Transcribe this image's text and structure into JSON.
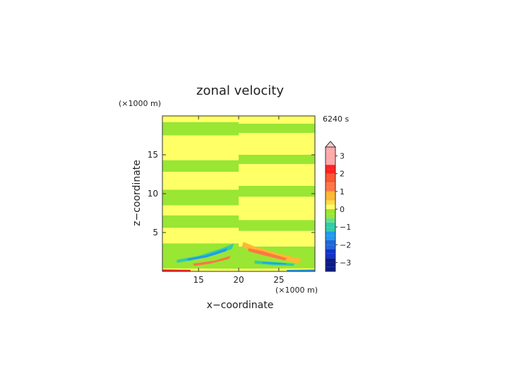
{
  "chart_data": {
    "type": "heatmap",
    "title": "zonal velocity",
    "xlabel": "x−coordinate",
    "ylabel": "z−coordinate",
    "x_unit": "(×1000 m)",
    "y_unit": "(×1000 m)",
    "time_label": "6240 s",
    "xlim": [
      10.5,
      29.5
    ],
    "ylim": [
      0,
      20
    ],
    "x_ticks": [
      15,
      20,
      25
    ],
    "y_ticks": [
      5,
      10,
      15
    ],
    "colorbar": {
      "levels": [
        -3.5,
        -3.25,
        -3,
        -2.75,
        -2.5,
        -2.25,
        -2,
        -1.75,
        -1.5,
        -1.25,
        -1,
        -0.75,
        -0.5,
        -0.25,
        0,
        0.25,
        0.5,
        0.75,
        1,
        1.25,
        1.5,
        1.75,
        2,
        2.25,
        2.5,
        2.75,
        3,
        3.25,
        3.5
      ],
      "tick_labels": [
        "3",
        "2",
        "1",
        "0",
        "−1",
        "−2",
        "−3"
      ],
      "tick_values": [
        3,
        2,
        1,
        0,
        -1,
        -2,
        -3
      ],
      "extend": "max"
    },
    "colors": {
      "yellow": "#ffff66",
      "green": "#99e633",
      "cyan": "#33ccaa",
      "blue": "#2299ee",
      "deep_blue": "#1133cc",
      "orange": "#ffb833",
      "red_orange": "#ff7744",
      "red": "#ff2222"
    }
  }
}
